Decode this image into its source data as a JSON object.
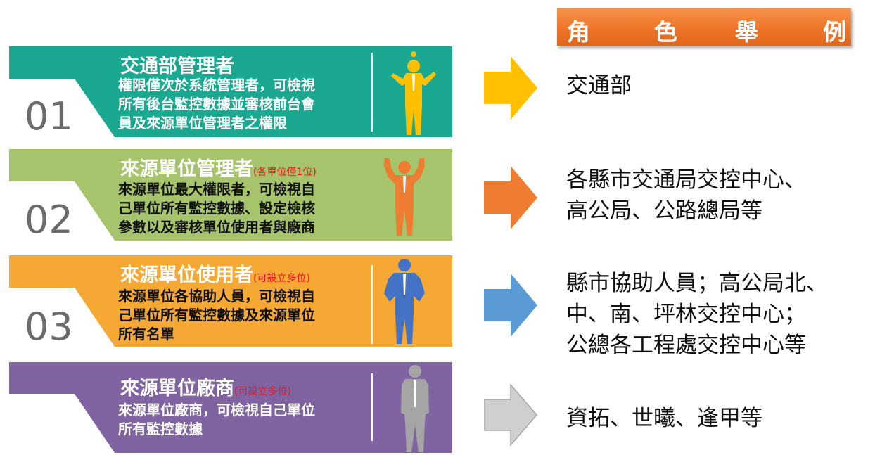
{
  "header": {
    "chars": [
      "角",
      "色",
      "舉",
      "例"
    ]
  },
  "rows": [
    {
      "number": "01",
      "title": "交通部管理者",
      "note": "",
      "description": [
        "權限僅次於系統管理者，可檢視",
        "所有後台監控數據並審核前台會",
        "員及來源單位管理者之權限"
      ],
      "role_lines": [
        "交通部"
      ],
      "band_color": "#1aa891",
      "person_color": "#ffc000",
      "arrow_color": "#ffc000",
      "person_icon": "idea-man-icon"
    },
    {
      "number": "02",
      "title": "來源單位管理者",
      "note": "(各單位僅1位)",
      "description": [
        "來源單位最大權限者，可檢視自",
        "己單位所有監控數據、設定檢核",
        "參數以及審核單位使用者與廠商"
      ],
      "role_lines": [
        "各縣市交通局交控中心、",
        "高公局、公路總局等"
      ],
      "band_color": "#a6c46b",
      "person_color": "#ee7d31",
      "arrow_color": "#ee7d31",
      "person_icon": "strong-man-icon"
    },
    {
      "number": "03",
      "title": "來源單位使用者",
      "note": "(可設立多位)",
      "description": [
        "來源單位各協助人員，可檢視自",
        "己單位所有監控數據及來源單位",
        "所有名單"
      ],
      "role_lines": [
        "縣市協助人員；高公局北、",
        "中、南、坪林交控中心；",
        "公總各工程處交控中心等"
      ],
      "band_color": "#f5a934",
      "person_color": "#4472c4",
      "arrow_color": "#5b9bd5",
      "person_icon": "hands-on-hips-man-icon"
    },
    {
      "number": "",
      "title": "來源單位廠商",
      "note": "(可設立多位)",
      "description": [
        "來源單位廠商，可檢視自己單位",
        "所有監控數據"
      ],
      "role_lines": [
        "資拓、世曦、逢甲等"
      ],
      "band_color": "#8064a2",
      "person_color": "#a5a5a5",
      "arrow_color": "#d0cfd0",
      "person_icon": "standing-man-icon"
    }
  ]
}
